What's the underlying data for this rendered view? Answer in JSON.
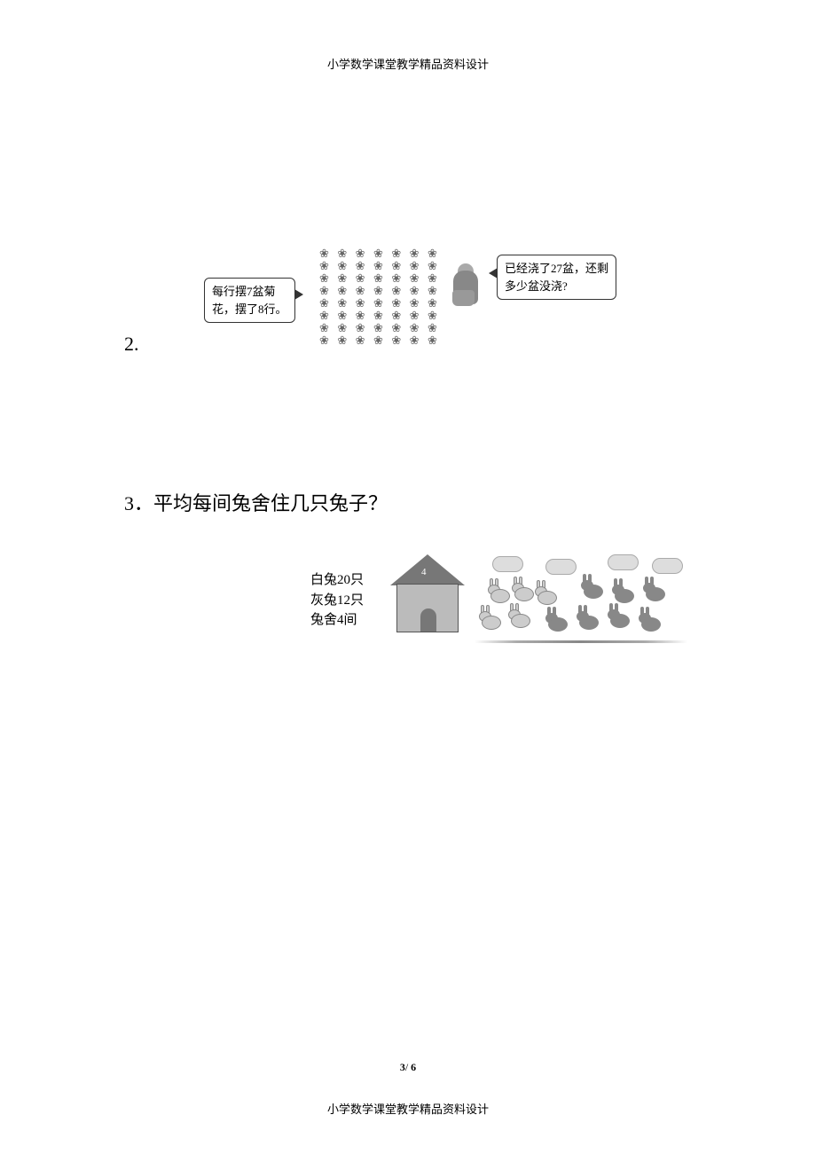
{
  "header": {
    "text": "小学数学课堂教学精品资料设计"
  },
  "problem2": {
    "number": "2.",
    "leftBox": {
      "line1": "每行摆7盆菊",
      "line2": "花，摆了8行。"
    },
    "rightBox": {
      "line1": "已经浇了27盆，还剩",
      "line2": "多少盆没浇?"
    },
    "flowerRows": 8,
    "flowerCols": 7
  },
  "problem3": {
    "number": "3",
    "question": "．平均每间兔舍住几只兔子？",
    "info": {
      "line1": "白兔20只",
      "line2": "灰兔12只",
      "line3": "兔舍4间"
    },
    "houseNumber": "4"
  },
  "pageNumber": {
    "current": "3",
    "separator": "/",
    "total": "6"
  },
  "footer": {
    "text": "小学数学课堂教学精品资料设计"
  }
}
